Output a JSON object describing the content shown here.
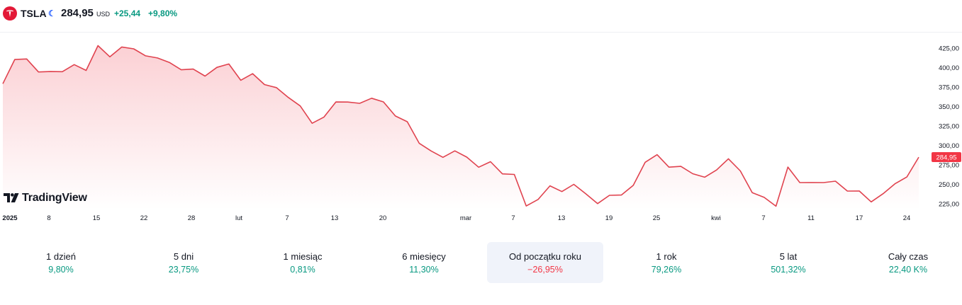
{
  "header": {
    "symbol": "TSLA",
    "price": "284,95",
    "currency": "USD",
    "change": "+25,44",
    "change_percent": "+9,80%",
    "moon_icon": "moon-icon"
  },
  "brand": {
    "name": "TradingView"
  },
  "colors": {
    "line": "#e0434f",
    "area_top": "#fbd0d4",
    "area_bottom": "#ffffff",
    "positive": "#089981",
    "negative": "#f23645",
    "price_tag": "#f23645"
  },
  "chart_data": {
    "type": "area",
    "x_labels": [
      "2025",
      "8",
      "15",
      "22",
      "28",
      "lut",
      "7",
      "13",
      "20",
      "mar",
      "7",
      "13",
      "19",
      "25",
      "kwi",
      "7",
      "11",
      "17",
      "24"
    ],
    "y_ticks": [
      "425,00",
      "400,00",
      "375,00",
      "350,00",
      "325,00",
      "300,00",
      "275,00",
      "250,00",
      "225,00"
    ],
    "ylim": [
      215,
      435
    ],
    "last_price_label": "284,95",
    "series": [
      {
        "values": [
          379.3,
          410.4,
          411.1,
          394.4,
          394.9,
          394.7,
          403.8,
          396.4,
          428.2,
          413.8,
          426.5,
          424.1,
          415.1,
          412.4,
          406.6,
          397.2,
          398.1,
          389.1,
          400.3,
          404.6,
          383.7,
          392.2,
          378.2,
          374.3,
          361.6,
          350.7,
          328.5,
          336.5,
          355.8,
          355.7,
          354.1,
          360.6,
          355.9,
          337.8,
          330.5,
          302.8,
          292.9,
          284.7,
          293.0,
          285.0,
          272.0,
          279.1,
          263.5,
          262.7,
          222.2,
          230.6,
          248.1,
          240.7,
          249.98,
          238.0,
          225.3,
          235.9,
          236.3,
          248.7,
          278.4,
          288.1,
          272.1,
          273.1,
          263.6,
          259.2,
          268.5,
          282.8,
          267.3,
          239.4,
          233.3,
          221.9,
          272.2,
          252.3,
          252.4,
          252.3,
          254.1,
          241.4,
          241.5,
          227.5,
          237.97,
          250.7,
          259.5,
          284.95
        ]
      }
    ]
  },
  "periods": [
    {
      "label": "1 dzień",
      "value": "9,80%",
      "sign": "pos"
    },
    {
      "label": "5 dni",
      "value": "23,75%",
      "sign": "pos"
    },
    {
      "label": "1 miesiąc",
      "value": "0,81%",
      "sign": "pos"
    },
    {
      "label": "6 miesięcy",
      "value": "11,30%",
      "sign": "pos"
    },
    {
      "label": "Od początku roku",
      "value": "−26,95%",
      "sign": "neg",
      "active": true
    },
    {
      "label": "1 rok",
      "value": "79,26%",
      "sign": "pos"
    },
    {
      "label": "5 lat",
      "value": "501,32%",
      "sign": "pos"
    },
    {
      "label": "Cały czas",
      "value": "22,40 K%",
      "sign": "pos"
    }
  ]
}
